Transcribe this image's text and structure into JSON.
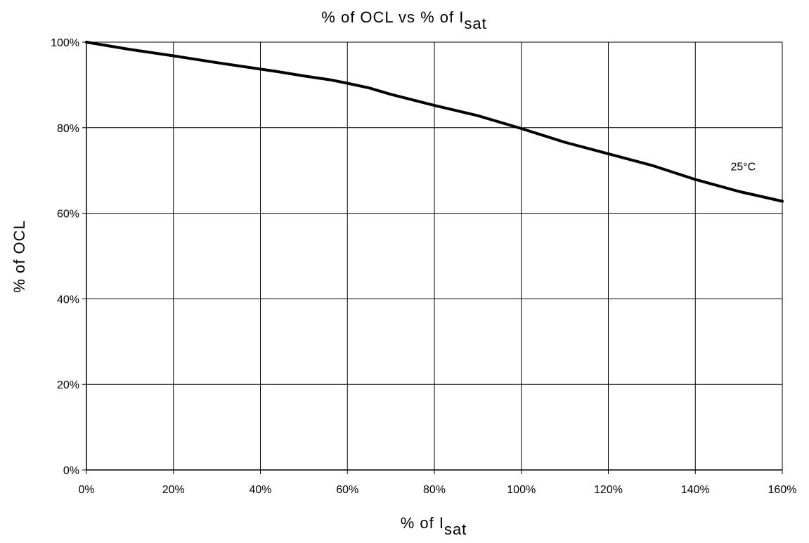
{
  "chart_data": {
    "type": "line",
    "title": {
      "prefix": "% of OCL vs % of I",
      "subscript": "sat"
    },
    "xlabel": {
      "prefix": "% of I",
      "subscript": "sat"
    },
    "ylabel": "% of OCL",
    "xlim": [
      0,
      160
    ],
    "ylim": [
      0,
      100
    ],
    "x_ticks": [
      0,
      20,
      40,
      60,
      80,
      100,
      120,
      140,
      160
    ],
    "x_tick_labels": [
      "0%",
      "20%",
      "40%",
      "60%",
      "80%",
      "100%",
      "120%",
      "140%",
      "160%"
    ],
    "y_ticks": [
      0,
      20,
      40,
      60,
      80,
      100
    ],
    "y_tick_labels": [
      "0%",
      "20%",
      "40%",
      "60%",
      "80%",
      "100%"
    ],
    "grid": true,
    "line_color": "#000000",
    "series": [
      {
        "name": "25°C",
        "x": [
          0,
          10,
          20,
          30,
          40,
          44,
          50,
          56,
          60,
          65,
          70,
          80,
          90,
          100,
          110,
          120,
          130,
          140,
          150,
          160
        ],
        "y": [
          100,
          98.3,
          96.8,
          95.2,
          93.7,
          93.1,
          92.1,
          91.2,
          90.4,
          89.3,
          87.8,
          85.2,
          82.8,
          79.8,
          76.6,
          73.9,
          71.2,
          67.9,
          65.1,
          62.8
        ]
      }
    ],
    "annotations": [
      {
        "text": "25°C",
        "x": 151,
        "y": 70
      }
    ]
  }
}
